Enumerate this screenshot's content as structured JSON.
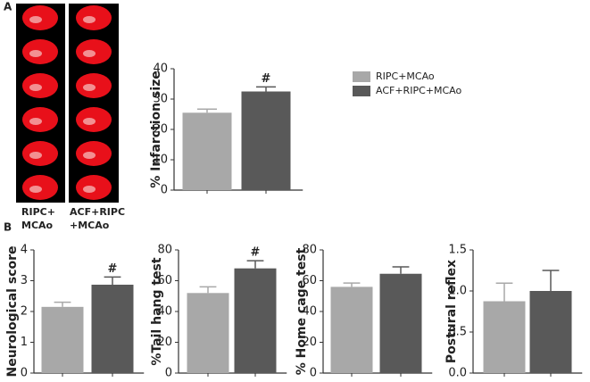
{
  "panel_labels": [
    "A",
    "B"
  ],
  "image_labels": [
    [
      "RIPC+",
      "MCAo"
    ],
    [
      "ACF+RIPC",
      "+MCAo"
    ]
  ],
  "chart_data": [
    {
      "type": "bar",
      "ylabel": "% Infarction size",
      "ylim": [
        0,
        40
      ],
      "yticks": [
        0,
        10,
        20,
        30,
        40
      ],
      "legend": "right",
      "series": [
        {
          "name": "RIPC+MCAo",
          "color": "#a8a8a8",
          "values": [
            25.5
          ],
          "errors": [
            1.2
          ]
        },
        {
          "name": "ACF+RIPC+MCAo",
          "color": "#595959",
          "values": [
            32.5
          ],
          "errors": [
            1.5
          ],
          "annotation": "#"
        }
      ]
    },
    {
      "type": "bar",
      "ylabel": "Neurological score",
      "ylim": [
        0,
        4
      ],
      "yticks": [
        0,
        1,
        2,
        3,
        4
      ],
      "series": [
        {
          "color": "#a8a8a8",
          "values": [
            2.15
          ],
          "errors": [
            0.15
          ]
        },
        {
          "color": "#595959",
          "values": [
            2.87
          ],
          "errors": [
            0.25
          ],
          "annotation": "#"
        }
      ]
    },
    {
      "type": "bar",
      "ylabel": "%Tail hang test",
      "ylim": [
        0,
        80
      ],
      "yticks": [
        0,
        20,
        40,
        60,
        80
      ],
      "series": [
        {
          "color": "#a8a8a8",
          "values": [
            52
          ],
          "errors": [
            4
          ]
        },
        {
          "color": "#595959",
          "values": [
            68
          ],
          "errors": [
            5
          ],
          "annotation": "#"
        }
      ]
    },
    {
      "type": "bar",
      "ylabel": "% Home cage test",
      "ylim": [
        0,
        80
      ],
      "yticks": [
        0,
        20,
        40,
        60,
        80
      ],
      "series": [
        {
          "color": "#a8a8a8",
          "values": [
            56
          ],
          "errors": [
            2.5
          ]
        },
        {
          "color": "#595959",
          "values": [
            64.5
          ],
          "errors": [
            4.5
          ]
        }
      ]
    },
    {
      "type": "bar",
      "ylabel": "Postural reflex",
      "ylim": [
        0,
        1.5
      ],
      "yticks": [
        {
          "value": 0,
          "label": "0.0"
        },
        0.5,
        {
          "value": 1,
          "label": "1.0"
        },
        1.5
      ],
      "series": [
        {
          "color": "#a8a8a8",
          "values": [
            0.875
          ],
          "errors": [
            0.22
          ]
        },
        {
          "color": "#595959",
          "values": [
            1.0
          ],
          "errors": [
            0.25
          ]
        }
      ]
    }
  ]
}
